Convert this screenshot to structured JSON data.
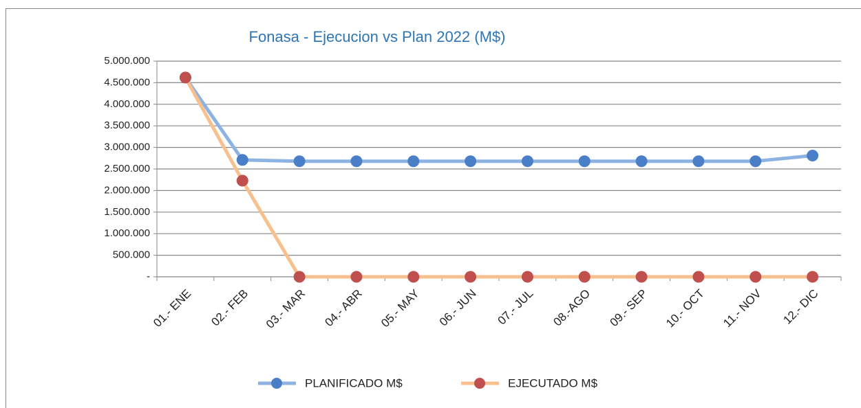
{
  "chart_data": {
    "type": "line",
    "title": "Fonasa - Ejecucion vs  Plan 2022 (M$)",
    "categories": [
      "01.- ENE",
      "02.- FEB",
      "03.- MAR",
      "04.- ABR",
      "05.- MAY",
      "06.- JUN",
      "07.- JUL",
      "08.-AGO",
      "09.- SEP",
      "10.- OCT",
      "11.- NOV",
      "12.- DIC"
    ],
    "series": [
      {
        "name": "PLANIFICADO M$",
        "color": "#8db3e2",
        "marker_color": "#4a7fc8",
        "values": [
          4620000,
          2710000,
          2680000,
          2680000,
          2680000,
          2680000,
          2680000,
          2680000,
          2680000,
          2680000,
          2680000,
          2810000
        ]
      },
      {
        "name": "EJECUTADO M$",
        "color": "#f9c08f",
        "marker_color": "#c0504d",
        "values": [
          4620000,
          2230000,
          0,
          0,
          0,
          0,
          0,
          0,
          0,
          0,
          0,
          0
        ]
      }
    ],
    "ylim": [
      0,
      5000000
    ],
    "yticks": [
      {
        "value": 0,
        "label": "-"
      },
      {
        "value": 500000,
        "label": "500.000"
      },
      {
        "value": 1000000,
        "label": "1.000.000"
      },
      {
        "value": 1500000,
        "label": "1.500.000"
      },
      {
        "value": 2000000,
        "label": "2.000.000"
      },
      {
        "value": 2500000,
        "label": "2.500.000"
      },
      {
        "value": 3000000,
        "label": "3.000.000"
      },
      {
        "value": 3500000,
        "label": "3.500.000"
      },
      {
        "value": 4000000,
        "label": "4.000.000"
      },
      {
        "value": 4500000,
        "label": "4.500.000"
      },
      {
        "value": 5000000,
        "label": "5.000.000"
      }
    ],
    "grid": true,
    "legend": "bottom"
  }
}
